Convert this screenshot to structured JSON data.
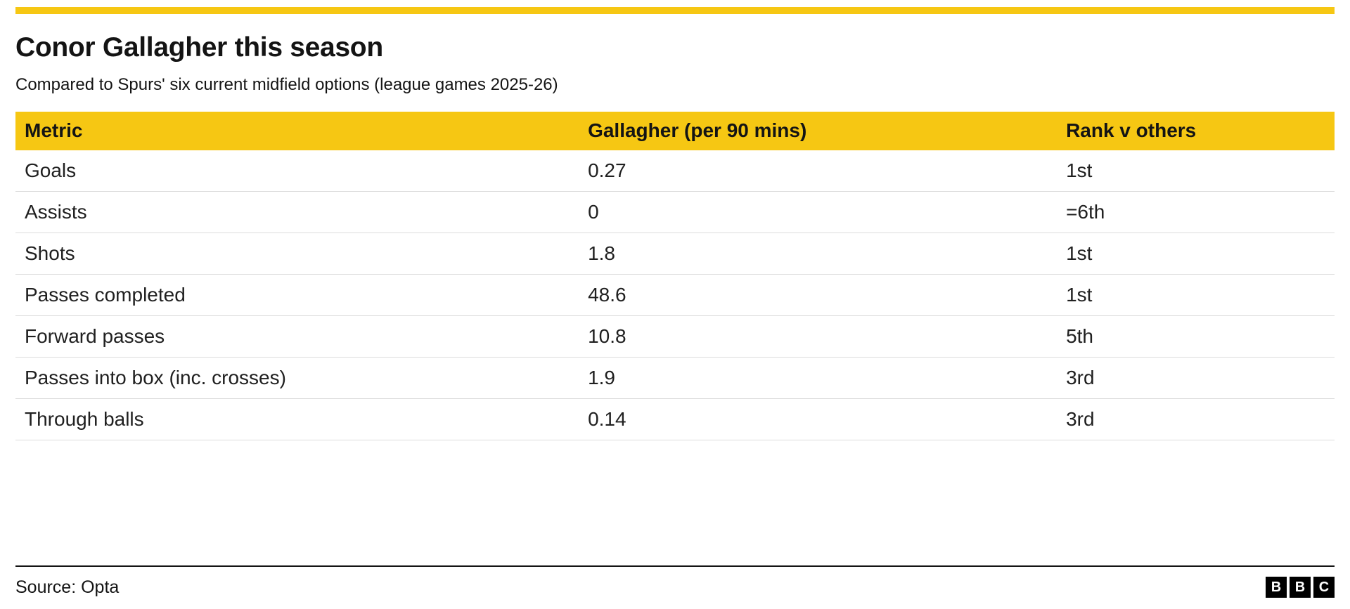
{
  "colors": {
    "accent_yellow": "#F6C713",
    "text": "#141414",
    "row_divider": "#DCDCDC",
    "footer_divider": "#141414",
    "logo_bg": "#000000",
    "logo_text": "#FFFFFF"
  },
  "header": {
    "title": "Conor Gallagher this season",
    "subtitle": "Compared to Spurs' six current midfield options (league games 2025-26)"
  },
  "table": {
    "columns": {
      "metric": "Metric",
      "value": "Gallagher (per 90 mins)",
      "rank": "Rank v others"
    },
    "rows": [
      {
        "metric": "Goals",
        "value": "0.27",
        "rank": "1st"
      },
      {
        "metric": "Assists",
        "value": "0",
        "rank": "=6th"
      },
      {
        "metric": "Shots",
        "value": "1.8",
        "rank": "1st"
      },
      {
        "metric": "Passes completed",
        "value": "48.6",
        "rank": "1st"
      },
      {
        "metric": "Forward passes",
        "value": "10.8",
        "rank": "5th"
      },
      {
        "metric": "Passes into box (inc. crosses)",
        "value": "1.9",
        "rank": "3rd"
      },
      {
        "metric": "Through balls",
        "value": "0.14",
        "rank": "3rd"
      }
    ]
  },
  "footer": {
    "source": "Source: Opta",
    "logo_letters": [
      "B",
      "B",
      "C"
    ]
  },
  "chart_data": {
    "type": "table",
    "title": "Conor Gallagher this season",
    "subtitle": "Compared to Spurs' six current midfield options (league games 2025-26)",
    "columns": [
      "Metric",
      "Gallagher (per 90 mins)",
      "Rank v others"
    ],
    "rows": [
      [
        "Goals",
        "0.27",
        "1st"
      ],
      [
        "Assists",
        "0",
        "=6th"
      ],
      [
        "Shots",
        "1.8",
        "1st"
      ],
      [
        "Passes completed",
        "48.6",
        "1st"
      ],
      [
        "Forward passes",
        "10.8",
        "5th"
      ],
      [
        "Passes into box (inc. crosses)",
        "1.9",
        "3rd"
      ],
      [
        "Through balls",
        "0.14",
        "3rd"
      ]
    ],
    "source": "Source: Opta"
  }
}
